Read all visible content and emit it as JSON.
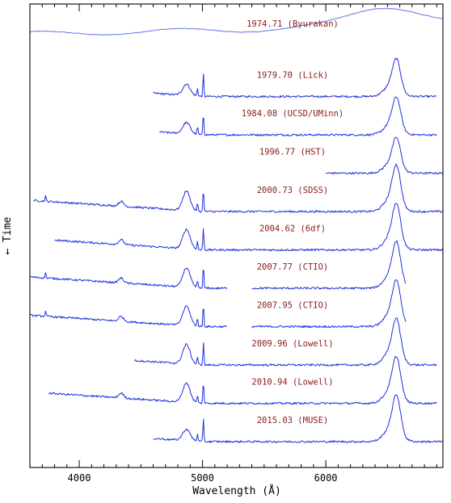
{
  "chart_data": {
    "type": "line",
    "title": "",
    "xlabel": "Wavelength (Å)",
    "ylabel": "← Time",
    "xlim": [
      3600,
      6950
    ],
    "xticks": [
      4000,
      5000,
      6000
    ],
    "grid": false,
    "series": [
      {
        "name": "1974.71 (Byurakan)",
        "xmin": 3600,
        "xmax": 6950,
        "base": 0.0,
        "kind": "smooth"
      },
      {
        "name": "1979.70 (Lick)",
        "xmin": 4600,
        "xmax": 6900,
        "base": 1.0,
        "kind": "spectrum"
      },
      {
        "name": "1984.08 (UCSD/UMinn)",
        "xmin": 4650,
        "xmax": 6900,
        "base": 2.0,
        "kind": "spectrum"
      },
      {
        "name": "1996.77 (HST)",
        "xmin": 6000,
        "xmax": 6950,
        "base": 3.0,
        "kind": "spectrum"
      },
      {
        "name": "2000.73 (SDSS)",
        "xmin": 3630,
        "xmax": 6950,
        "base": 4.0,
        "kind": "spectrum"
      },
      {
        "name": "2004.62 (6df)",
        "xmin": 3800,
        "xmax": 6950,
        "base": 5.0,
        "kind": "spectrum"
      },
      {
        "name": "2007.77 (CTIO)",
        "xmin": 3600,
        "xmax": 6650,
        "base": 6.0,
        "kind": "spectrum"
      },
      {
        "name": "2007.95 (CTIO)",
        "xmin": 3600,
        "xmax": 6650,
        "base": 7.0,
        "kind": "spectrum"
      },
      {
        "name": "2009.96 (Lowell)",
        "xmin": 4450,
        "xmax": 6900,
        "base": 8.0,
        "kind": "spectrum"
      },
      {
        "name": "2010.94 (Lowell)",
        "xmin": 3750,
        "xmax": 6900,
        "base": 9.0,
        "kind": "spectrum"
      },
      {
        "name": "2015.03 (MUSE)",
        "xmin": 4600,
        "xmax": 6950,
        "base": 10.0,
        "kind": "spectrum"
      }
    ]
  }
}
